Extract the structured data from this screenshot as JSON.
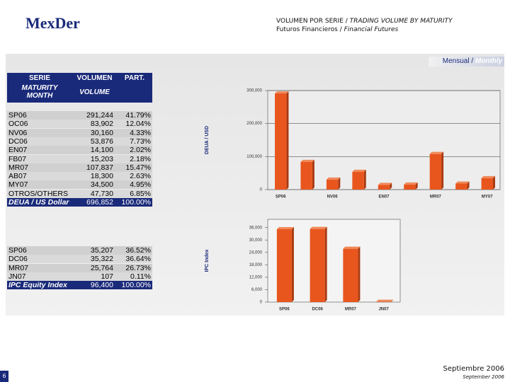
{
  "header": {
    "logo": "MexDer",
    "title": "VOLUMEN POR SERIE / ",
    "title_en": "TRADING VOLUME BY MATURITY",
    "subtitle": "Futuros Financieros / ",
    "subtitle_en": "Financial Futures"
  },
  "badge": {
    "es": "Mensual / ",
    "en": "Monthly"
  },
  "table_header": {
    "serie": "SERIE",
    "maturity": "MATURITY MONTH",
    "volumen": "VOLUMEN",
    "volume": "VOLUME",
    "part": "PART."
  },
  "tables": [
    {
      "rows": [
        [
          "SP06",
          "291,244",
          "41.79%"
        ],
        [
          "OC06",
          "83,902",
          "12.04%"
        ],
        [
          "NV06",
          "30,160",
          "4.33%"
        ],
        [
          "DC06",
          "53,876",
          "7.73%"
        ],
        [
          "EN07",
          "14,100",
          "2.02%"
        ],
        [
          "FB07",
          "15,203",
          "2.18%"
        ],
        [
          "MR07",
          "107,837",
          "15.47%"
        ],
        [
          "AB07",
          "18,300",
          "2.63%"
        ],
        [
          "MY07",
          "34,500",
          "4.95%"
        ],
        [
          "OTROS/OTHERS",
          "47,730",
          "6.85%"
        ]
      ],
      "total": [
        "DEUA / US Dollar",
        "696,852",
        "100.00%"
      ]
    },
    {
      "rows": [
        [
          "SP06",
          "35,207",
          "36.52%"
        ],
        [
          "DC06",
          "35,322",
          "36.64%"
        ],
        [
          "MR07",
          "25,764",
          "26.73%"
        ],
        [
          "JN07",
          "107",
          "0.11%"
        ]
      ],
      "total": [
        "IPC Equity Index",
        "96,400",
        "100.00%"
      ]
    }
  ],
  "chart_data": [
    {
      "type": "bar",
      "y_label": "DEUA / USD",
      "color": "#e8561e",
      "categories": [
        "SP06",
        null,
        "NV06",
        null,
        "EN07",
        null,
        "MR07",
        null,
        "MY07"
      ],
      "values": [
        291244,
        83902,
        30160,
        53876,
        14100,
        15203,
        107837,
        18300,
        34500
      ],
      "ylim": [
        0,
        300000
      ],
      "yticks": [
        0,
        {
          "value": 100000,
          "label": "100,000"
        },
        {
          "value": 200000,
          "label": "200,000"
        },
        {
          "value": 300000,
          "label": "300,000"
        }
      ],
      "grid": true
    },
    {
      "type": "bar",
      "y_label": "IPC Index",
      "color": "#e8561e",
      "categories": [
        "SP06",
        "DC06",
        "MR07",
        "JN07"
      ],
      "values": [
        35207,
        35322,
        25764,
        107
      ],
      "ylim": [
        0,
        40000
      ],
      "yticks": [
        0,
        {
          "value": 6000,
          "label": "6,000"
        },
        {
          "value": 12000,
          "label": "12,000"
        },
        {
          "value": 18000,
          "label": "18,000"
        },
        {
          "value": 24000,
          "label": "24,000"
        },
        {
          "value": 30000,
          "label": "30,000"
        },
        {
          "value": 36000,
          "label": "36,000"
        }
      ],
      "grid": false
    }
  ],
  "footer": {
    "date": "Septiembre 2006",
    "date_en": "September 2006",
    "page": "6"
  }
}
